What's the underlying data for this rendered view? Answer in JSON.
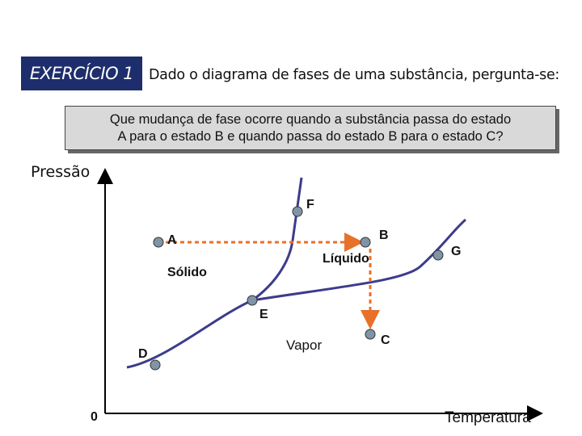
{
  "header": {
    "exercise_label": "EXERCÍCIO 1",
    "prompt": "Dado o diagrama de fases de uma substância, pergunta-se:"
  },
  "question": {
    "line1": "Que mudança de fase ocorre quando a substância passa do estado",
    "line2": "A para o estado B e quando passa do estado B para o estado C?"
  },
  "diagram": {
    "y_axis_label": "Pressão",
    "x_axis_label": "Temperatura",
    "origin_label": "0",
    "regions": {
      "solid": "Sólido",
      "liquid": "Líquido",
      "vapor": "Vapor"
    },
    "points": {
      "A": "A",
      "B": "B",
      "C": "C",
      "D": "D",
      "E": "E",
      "F": "F",
      "G": "G"
    },
    "colors": {
      "curve": "#3c3c8c",
      "point_fill": "#7f95a6",
      "arrow": "#e8702a",
      "axis": "#000000"
    }
  }
}
